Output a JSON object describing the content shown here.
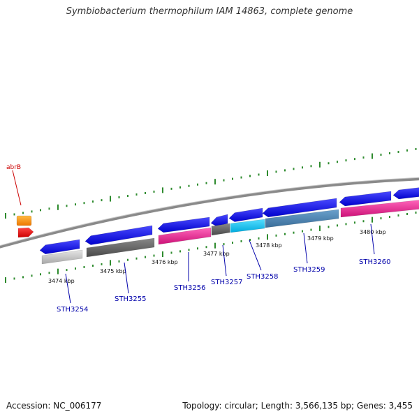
{
  "title": "Symbiobacterium thermophilum IAM 14863, complete genome",
  "footer": {
    "accession_label": "Accession: NC_006177",
    "stats_label": "Topology: circular; Length: 3,566,135 bp; Genes: 3,455"
  },
  "colors": {
    "backbone": "#8a8a8a",
    "tick_marks": "#2e8b2e",
    "gene_label": "#0000aa",
    "highlight_label": "#cc0000"
  },
  "ticks": [
    "3474 kbp",
    "3475 kbp",
    "3476 kbp",
    "3477 kbp",
    "3478 kbp",
    "3479 kbp",
    "3480 kbp"
  ],
  "genes": [
    {
      "name": "STH3254",
      "label": "STH3254",
      "color": "#0000ee",
      "strand": "-"
    },
    {
      "name": "STH3255",
      "label": "STH3255",
      "color": "#0000ee",
      "strand": "-"
    },
    {
      "name": "STH3256",
      "label": "STH3256",
      "color": "#0000ee",
      "strand": "-"
    },
    {
      "name": "STH3257",
      "label": "STH3257",
      "color": "#0000ee",
      "strand": "-"
    },
    {
      "name": "STH3258",
      "label": "STH3258",
      "color": "#0000ee",
      "strand": "-"
    },
    {
      "name": "STH3259",
      "label": "STH3259",
      "color": "#0000ee",
      "strand": "-"
    },
    {
      "name": "STH3260",
      "label": "STH3260",
      "color": "#0000ee",
      "strand": "-"
    }
  ],
  "highlight_gene": {
    "label": "abrB"
  }
}
